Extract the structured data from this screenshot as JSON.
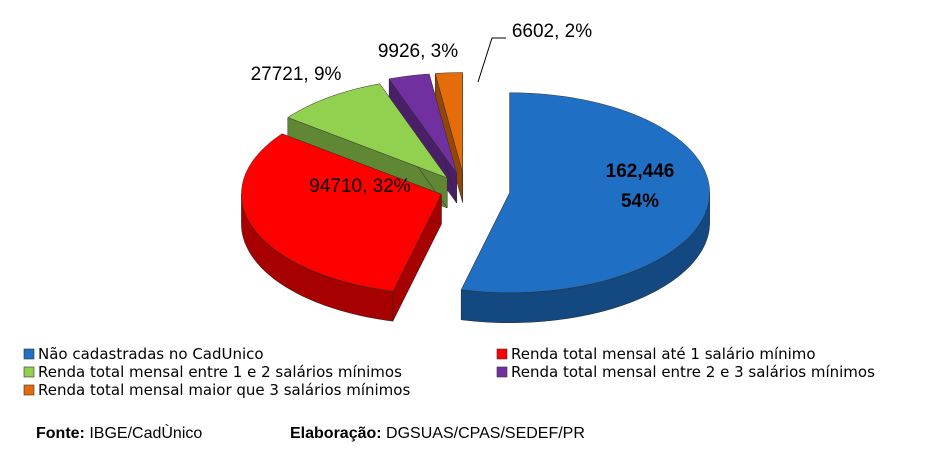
{
  "chart_data": {
    "type": "pie3d",
    "categories": [
      "Não cadastradas no CadUnico",
      "Renda total mensal até 1 salário mínimo",
      "Renda total mensal entre 1 e 2 salários mínimos",
      "Renda total mensal entre 2 e 3 salários mínimos",
      "Renda total mensal maior que 3 salários mínimos"
    ],
    "values": [
      162446,
      94710,
      27721,
      9926,
      6602
    ],
    "value_labels": [
      [
        "162,446",
        "54%"
      ],
      "94710, 32%",
      "27721, 9%",
      "9926, 3%",
      "6602, 2%"
    ],
    "colors": [
      "#1f6fc5",
      "#ff0000",
      "#92d050",
      "#7030a0",
      "#e46c0a"
    ]
  },
  "footer": {
    "source_label": "Fonte:",
    "source": "IBGE/CadÙnico",
    "author_label": "Elaboração:",
    "author": "DGSUAS/CPAS/SEDEF/PR"
  }
}
